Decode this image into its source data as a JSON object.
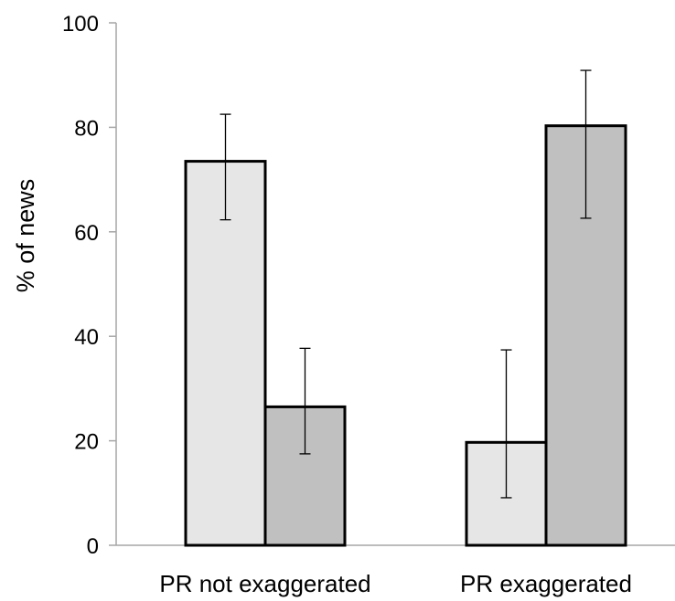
{
  "chart_data": {
    "type": "bar",
    "title": "",
    "xlabel": "",
    "ylabel": "% of news",
    "ylim": [
      0,
      100
    ],
    "yticks": [
      "0",
      "20",
      "40",
      "60",
      "80",
      "100"
    ],
    "categories": [
      "PR not exaggerated",
      "PR exaggerated"
    ],
    "grid": false,
    "legend": "none",
    "series": [
      {
        "color": "#e6e6e6",
        "values": [
          73.5,
          19.7
        ],
        "error_low": [
          62.3,
          9.1
        ],
        "error_high": [
          82.5,
          37.4
        ]
      },
      {
        "color": "#c0c0c0",
        "values": [
          26.5,
          80.3
        ],
        "error_low": [
          17.5,
          62.6
        ],
        "error_high": [
          37.7,
          90.9
        ]
      }
    ]
  }
}
